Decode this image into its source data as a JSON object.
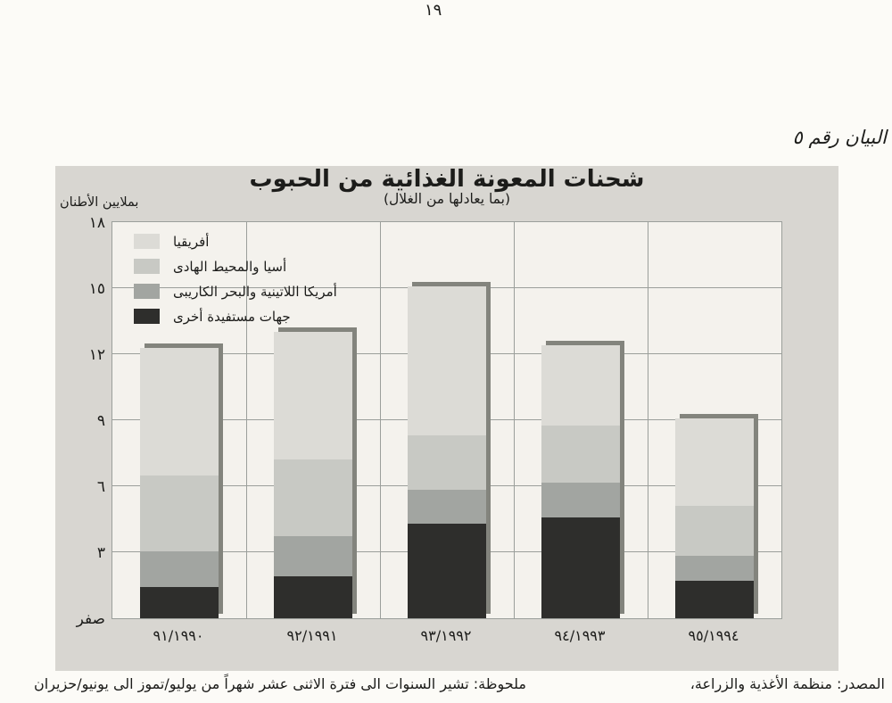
{
  "page": {
    "number": "١٩",
    "figure_caption": "البيان رقم ٥"
  },
  "footer": {
    "source": "المصدر: منظمة الأغذية والزراعة،",
    "note": "ملحوظة: تشير السنوات الى فترة الاثنى عشر شهراً من يوليو/تموز الى يونيو/حزيران"
  },
  "colors": {
    "page_background": "#fcfbf7",
    "figure_background": "#d8d6d1",
    "plot_background": "#f4f2ed",
    "gridline": "#9b9f9b",
    "bar_shadow": "#83847d"
  },
  "chart_data": {
    "type": "bar",
    "stacked": true,
    "title": "شحنات المعونة الغذائية من الحبوب",
    "subtitle": "(بما يعادلها من الغلال)",
    "unit_label": "بملايين الأطنان",
    "ylim": [
      0,
      18
    ],
    "grid": true,
    "legend_position": "top-left-inside",
    "series_order": "bottom-to-top",
    "categories": [
      "٩١/١٩٩٠",
      "٩٢/١٩٩١",
      "٩٣/١٩٩٢",
      "٩٤/١٩٩٣",
      "٩٥/١٩٩٤"
    ],
    "y_ticks": [
      {
        "value": 0,
        "label": "صفر"
      },
      {
        "value": 3,
        "label": "٣"
      },
      {
        "value": 6,
        "label": "٦"
      },
      {
        "value": 9,
        "label": "٩"
      },
      {
        "value": 12,
        "label": "١٢"
      },
      {
        "value": 15,
        "label": "١٥"
      },
      {
        "value": 18,
        "label": "١٨"
      }
    ],
    "series": [
      {
        "name": "جهات مستفيدة أخرى",
        "color": "#2e2e2c",
        "values": [
          1.4,
          1.9,
          4.3,
          4.6,
          1.7
        ]
      },
      {
        "name": "أمريكا اللاتينية والبحر الكاريبى",
        "color": "#a2a5a1",
        "values": [
          1.65,
          1.85,
          1.55,
          1.55,
          1.15
        ]
      },
      {
        "name": "أسيا والمحيط الهادى",
        "color": "#c8c9c4",
        "values": [
          3.45,
          3.45,
          2.45,
          2.6,
          2.25
        ]
      },
      {
        "name": "أفريقيا",
        "color": "#dcdbd6",
        "values": [
          5.8,
          5.8,
          6.8,
          3.65,
          4.0
        ]
      }
    ],
    "totals": [
      12.3,
      13.0,
      15.1,
      12.4,
      9.1
    ]
  }
}
